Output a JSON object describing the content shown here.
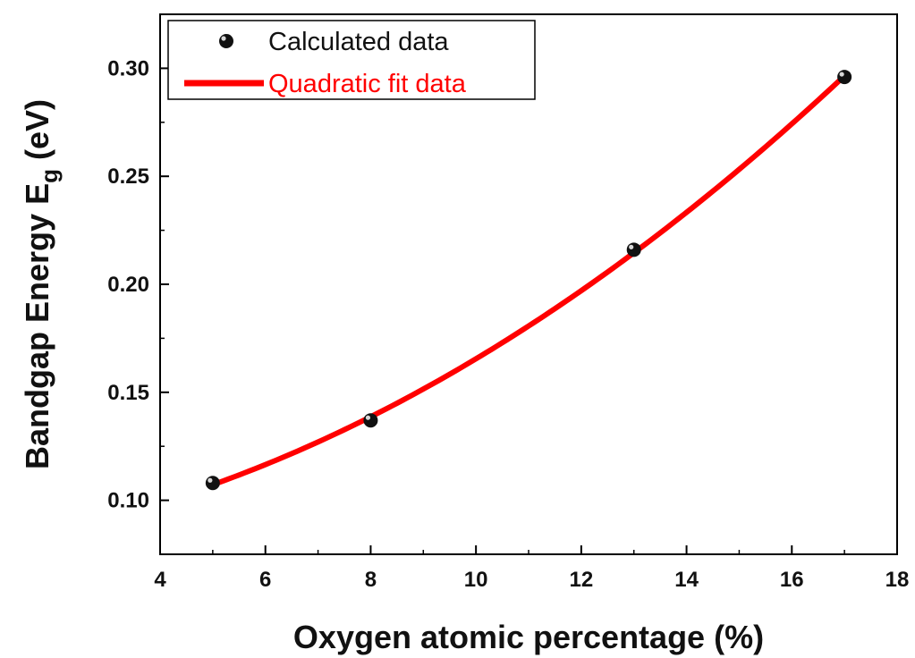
{
  "chart_data": {
    "type": "scatter",
    "xlabel": "Oxygen atomic percentage (%)",
    "ylabel_main": "Bandgap Energy E",
    "ylabel_sub": "g",
    "ylabel_unit": " (eV)",
    "xlim": [
      4,
      18
    ],
    "ylim": [
      0.075,
      0.325
    ],
    "xticks": [
      4,
      6,
      8,
      10,
      12,
      14,
      16,
      18
    ],
    "yticks": [
      0.1,
      0.15,
      0.2,
      0.25,
      0.3
    ],
    "xtick_labels": [
      "4",
      "6",
      "8",
      "10",
      "12",
      "14",
      "16",
      "18"
    ],
    "ytick_labels": [
      "0.10",
      "0.15",
      "0.20",
      "0.25",
      "0.30"
    ],
    "grid": false,
    "legend_position": "top-left",
    "series": [
      {
        "name": "Calculated data",
        "kind": "scatter",
        "color": "#111111",
        "x": [
          5,
          8,
          13,
          17
        ],
        "y": [
          0.108,
          0.137,
          0.216,
          0.296
        ]
      },
      {
        "name": "Quadratic fit data",
        "kind": "line",
        "color": "#ff0000",
        "fit": "quadratic"
      }
    ]
  }
}
